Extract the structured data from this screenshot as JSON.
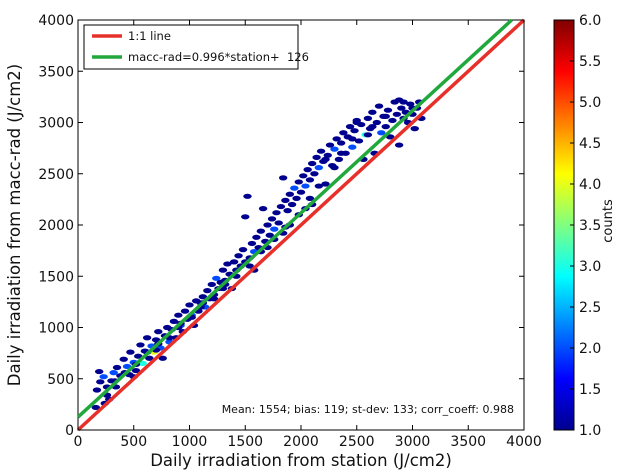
{
  "chart_data": {
    "type": "scatter",
    "xlabel": "Daily irradiation from station (J/cm2)",
    "ylabel": "Daily irradiation from macc-rad (J/cm2)",
    "xlim": [
      0,
      4000
    ],
    "ylim": [
      0,
      4000
    ],
    "xticks": [
      "0",
      "500",
      "1000",
      "1500",
      "2000",
      "2500",
      "3000",
      "3500",
      "4000"
    ],
    "yticks": [
      "0",
      "500",
      "1000",
      "1500",
      "2000",
      "2500",
      "3000",
      "3500",
      "4000"
    ],
    "grid": false,
    "legend_position": "top-left",
    "lines": [
      {
        "label": "1:1 line",
        "slope": 1.0,
        "intercept": 0,
        "color": "#e8302a"
      },
      {
        "label": "macc-rad=0.996*station+  126",
        "slope": 0.996,
        "intercept": 126,
        "color": "#21a83c"
      }
    ],
    "stats_annotation": "Mean: 1554; bias: 119; st-dev: 133; corr_coeff: 0.988",
    "colorbar": {
      "label": "counts",
      "min": 1.0,
      "max": 6.0,
      "ticks": [
        "1.0",
        "1.5",
        "2.0",
        "2.5",
        "3.0",
        "3.5",
        "4.0",
        "4.5",
        "5.0",
        "5.5",
        "6.0"
      ],
      "colormap": [
        "#00008f",
        "#0000ff",
        "#0080ff",
        "#00ffff",
        "#80ff80",
        "#ffff00",
        "#ff8000",
        "#ff0000",
        "#800000"
      ]
    },
    "points": [
      [
        170,
        390,
        1
      ],
      [
        200,
        470,
        1
      ],
      [
        230,
        520,
        2
      ],
      [
        260,
        420,
        1
      ],
      [
        190,
        570,
        1
      ],
      [
        300,
        480,
        1
      ],
      [
        320,
        560,
        2
      ],
      [
        280,
        300,
        1
      ],
      [
        240,
        260,
        1
      ],
      [
        160,
        220,
        1
      ],
      [
        350,
        610,
        1
      ],
      [
        380,
        530,
        1
      ],
      [
        410,
        690,
        1
      ],
      [
        440,
        620,
        2
      ],
      [
        460,
        540,
        1
      ],
      [
        470,
        760,
        1
      ],
      [
        500,
        660,
        2
      ],
      [
        520,
        580,
        1
      ],
      [
        540,
        720,
        1
      ],
      [
        560,
        830,
        1
      ],
      [
        580,
        650,
        3
      ],
      [
        600,
        770,
        1
      ],
      [
        620,
        900,
        1
      ],
      [
        640,
        700,
        1
      ],
      [
        660,
        820,
        2
      ],
      [
        680,
        760,
        4
      ],
      [
        700,
        880,
        1
      ],
      [
        720,
        960,
        1
      ],
      [
        740,
        800,
        2
      ],
      [
        760,
        700,
        1
      ],
      [
        780,
        920,
        1
      ],
      [
        800,
        1000,
        1
      ],
      [
        820,
        860,
        2
      ],
      [
        840,
        980,
        1
      ],
      [
        860,
        1060,
        1
      ],
      [
        880,
        900,
        1
      ],
      [
        900,
        1120,
        1
      ],
      [
        920,
        1020,
        2
      ],
      [
        940,
        960,
        1
      ],
      [
        960,
        1160,
        1
      ],
      [
        980,
        1080,
        1
      ],
      [
        1000,
        1220,
        1
      ],
      [
        1020,
        1120,
        2
      ],
      [
        1040,
        1020,
        1
      ],
      [
        1060,
        1260,
        1
      ],
      [
        1080,
        1160,
        1
      ],
      [
        1100,
        1240,
        1
      ],
      [
        1120,
        1300,
        1
      ],
      [
        1140,
        1200,
        2
      ],
      [
        1160,
        1360,
        1
      ],
      [
        1180,
        1280,
        1
      ],
      [
        1200,
        1420,
        1
      ],
      [
        1220,
        1320,
        1
      ],
      [
        1240,
        1480,
        2
      ],
      [
        1260,
        1380,
        1
      ],
      [
        1280,
        1440,
        1
      ],
      [
        1300,
        1560,
        1
      ],
      [
        1320,
        1460,
        1
      ],
      [
        1340,
        1620,
        1
      ],
      [
        1360,
        1520,
        1
      ],
      [
        1380,
        1380,
        1
      ],
      [
        1400,
        1640,
        1
      ],
      [
        1420,
        1560,
        1
      ],
      [
        1440,
        1700,
        1
      ],
      [
        1460,
        1600,
        1
      ],
      [
        1480,
        1760,
        1
      ],
      [
        1500,
        2080,
        1
      ],
      [
        1520,
        2280,
        1
      ],
      [
        1540,
        1680,
        1
      ],
      [
        1560,
        1820,
        1
      ],
      [
        1580,
        1740,
        2
      ],
      [
        1600,
        1880,
        1
      ],
      [
        1620,
        1780,
        1
      ],
      [
        1640,
        1940,
        1
      ],
      [
        1660,
        2160,
        1
      ],
      [
        1680,
        1840,
        1
      ],
      [
        1700,
        2000,
        1
      ],
      [
        1720,
        1900,
        1
      ],
      [
        1740,
        2060,
        1
      ],
      [
        1760,
        1960,
        2
      ],
      [
        1780,
        2120,
        1
      ],
      [
        1800,
        2020,
        1
      ],
      [
        1820,
        2180,
        1
      ],
      [
        1840,
        2460,
        1
      ],
      [
        1860,
        2240,
        1
      ],
      [
        1880,
        2140,
        1
      ],
      [
        1900,
        2300,
        1
      ],
      [
        1920,
        2200,
        1
      ],
      [
        1940,
        2360,
        2
      ],
      [
        1960,
        2260,
        1
      ],
      [
        1980,
        2420,
        1
      ],
      [
        2000,
        2320,
        1
      ],
      [
        2020,
        2480,
        1
      ],
      [
        2040,
        2380,
        2
      ],
      [
        2060,
        2540,
        1
      ],
      [
        2080,
        2440,
        1
      ],
      [
        2100,
        2600,
        1
      ],
      [
        2120,
        2500,
        1
      ],
      [
        2140,
        2660,
        1
      ],
      [
        2160,
        2560,
        2
      ],
      [
        2180,
        2720,
        1
      ],
      [
        2200,
        2620,
        1
      ],
      [
        2220,
        2400,
        1
      ],
      [
        2240,
        2680,
        1
      ],
      [
        2260,
        2780,
        1
      ],
      [
        2280,
        2580,
        1
      ],
      [
        2300,
        2740,
        2
      ],
      [
        2320,
        2840,
        1
      ],
      [
        2340,
        2640,
        1
      ],
      [
        2360,
        2800,
        1
      ],
      [
        2380,
        2900,
        1
      ],
      [
        2400,
        2700,
        1
      ],
      [
        2420,
        2860,
        1
      ],
      [
        2440,
        2960,
        1
      ],
      [
        2460,
        2760,
        2
      ],
      [
        2480,
        2920,
        1
      ],
      [
        2500,
        3020,
        1
      ],
      [
        2520,
        2820,
        1
      ],
      [
        2540,
        2980,
        1
      ],
      [
        2560,
        2640,
        1
      ],
      [
        2580,
        2880,
        3
      ],
      [
        2600,
        3040,
        1
      ],
      [
        2620,
        2940,
        1
      ],
      [
        2640,
        3100,
        1
      ],
      [
        2660,
        2700,
        1
      ],
      [
        2680,
        3000,
        1
      ],
      [
        2700,
        3160,
        1
      ],
      [
        2720,
        2900,
        2
      ],
      [
        2740,
        3060,
        1
      ],
      [
        2760,
        2960,
        1
      ],
      [
        2780,
        3120,
        1
      ],
      [
        2800,
        2860,
        1
      ],
      [
        2820,
        3020,
        1
      ],
      [
        2840,
        3200,
        1
      ],
      [
        2860,
        3080,
        1
      ],
      [
        2880,
        2780,
        1
      ],
      [
        2900,
        3140,
        1
      ],
      [
        2920,
        3040,
        1
      ],
      [
        2940,
        3100,
        1
      ],
      [
        2960,
        3000,
        1
      ],
      [
        2980,
        3180,
        1
      ],
      [
        3000,
        3080,
        1
      ],
      [
        3020,
        2940,
        1
      ],
      [
        3040,
        3140,
        1
      ],
      [
        3060,
        3200,
        1
      ],
      [
        3080,
        3040,
        1
      ],
      [
        2880,
        3220,
        1
      ],
      [
        2500,
        3000,
        1
      ],
      [
        2300,
        2560,
        1
      ],
      [
        2100,
        2200,
        1
      ],
      [
        1900,
        2000,
        1
      ],
      [
        1700,
        1780,
        1
      ],
      [
        1500,
        1640,
        1
      ],
      [
        1300,
        1380,
        1
      ],
      [
        1100,
        1200,
        1
      ],
      [
        900,
        1000,
        1
      ],
      [
        700,
        780,
        1
      ],
      [
        500,
        520,
        1
      ],
      [
        340,
        420,
        1
      ],
      [
        260,
        340,
        1
      ],
      [
        2220,
        2640,
        1
      ],
      [
        2160,
        2380,
        1
      ],
      [
        2040,
        2160,
        1
      ],
      [
        1980,
        2100,
        1
      ],
      [
        1860,
        1980,
        1
      ],
      [
        1760,
        1860,
        1
      ],
      [
        1640,
        1740,
        1
      ],
      [
        1540,
        1600,
        1
      ],
      [
        1420,
        1500,
        1
      ],
      [
        1320,
        1420,
        1
      ],
      [
        1220,
        1280,
        1
      ],
      [
        1120,
        1240,
        1
      ],
      [
        1020,
        1100,
        1
      ],
      [
        920,
        1040,
        1
      ],
      [
        820,
        900,
        1
      ],
      [
        720,
        840,
        1
      ],
      [
        620,
        760,
        1
      ],
      [
        520,
        640,
        1
      ],
      [
        420,
        560,
        1
      ],
      [
        330,
        480,
        1
      ],
      [
        2460,
        2840,
        1
      ],
      [
        2600,
        2880,
        1
      ],
      [
        2760,
        3060,
        1
      ],
      [
        2920,
        3200,
        1
      ],
      [
        3000,
        3140,
        1
      ],
      [
        2360,
        2700,
        1
      ],
      [
        2640,
        2960,
        1
      ],
      [
        1580,
        1560,
        1
      ],
      [
        1840,
        1920,
        1
      ],
      [
        2080,
        2260,
        1
      ]
    ]
  }
}
